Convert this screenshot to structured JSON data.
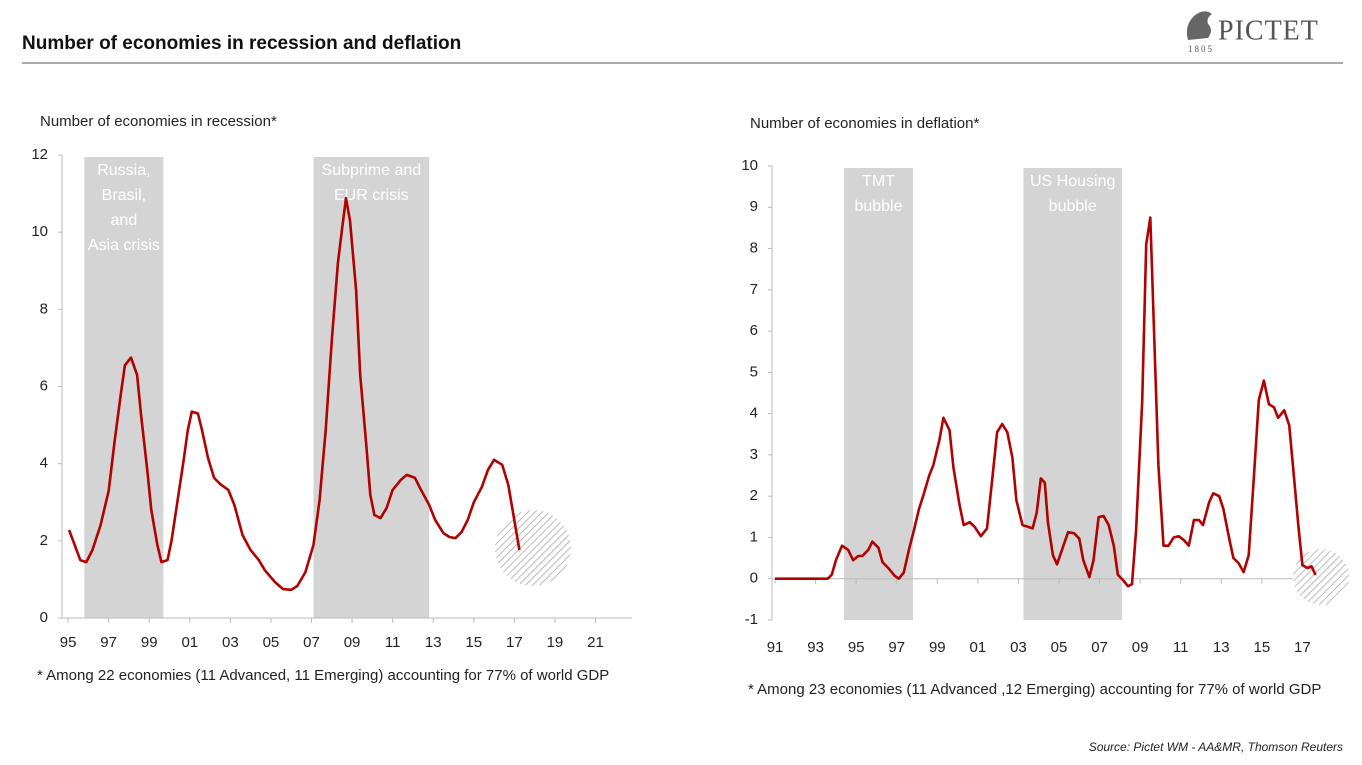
{
  "header": {
    "title": "Number of economies in recession and deflation",
    "logo": "PICTET",
    "logo_year": "1805"
  },
  "source": "Source: Pictet WM - AA&MR, Thomson Reuters",
  "chart_data": [
    {
      "type": "line",
      "ylabel": "Number of economies in recession*",
      "footnote": "* Among 22 economies (11 Advanced, 11 Emerging) accounting for 77% of world GDP",
      "color": "#b30000",
      "x": [
        1995.05,
        1995.6,
        1995.9,
        1996.2,
        1996.6,
        1997.0,
        1997.3,
        1997.6,
        1997.8,
        1998.1,
        1998.4,
        1998.6,
        1998.9,
        1999.1,
        1999.4,
        1999.6,
        1999.9,
        2000.1,
        2000.4,
        2000.7,
        2000.9,
        2001.1,
        2001.4,
        2001.6,
        2001.9,
        2002.2,
        2002.5,
        2002.9,
        2003.2,
        2003.6,
        2004.0,
        2004.4,
        2004.7,
        2005.2,
        2005.6,
        2006.0,
        2006.3,
        2006.7,
        2007.1,
        2007.4,
        2007.7,
        2008.0,
        2008.3,
        2008.5,
        2008.7,
        2008.9,
        2009.2,
        2009.4,
        2009.7,
        2009.9,
        2010.1,
        2010.4,
        2010.7,
        2011.0,
        2011.4,
        2011.7,
        2012.1,
        2012.4,
        2012.8,
        2013.1,
        2013.5,
        2013.8,
        2014.1,
        2014.4,
        2014.7,
        2015.0,
        2015.4,
        2015.7,
        2016.0,
        2016.4,
        2016.7,
        2017.0,
        2017.25
      ],
      "values": [
        2.28,
        1.5,
        1.45,
        1.76,
        2.4,
        3.3,
        4.6,
        5.8,
        6.55,
        6.75,
        6.3,
        5.25,
        3.85,
        2.8,
        1.9,
        1.45,
        1.5,
        2.0,
        3.05,
        4.1,
        4.87,
        5.35,
        5.3,
        4.87,
        4.15,
        3.63,
        3.47,
        3.32,
        2.93,
        2.15,
        1.76,
        1.5,
        1.24,
        0.93,
        0.75,
        0.73,
        0.83,
        1.19,
        1.9,
        3.06,
        4.87,
        7.2,
        9.2,
        10.05,
        10.88,
        10.3,
        8.5,
        6.3,
        4.48,
        3.19,
        2.67,
        2.59,
        2.85,
        3.32,
        3.58,
        3.71,
        3.63,
        3.32,
        2.93,
        2.54,
        2.2,
        2.1,
        2.07,
        2.23,
        2.54,
        3.0,
        3.4,
        3.84,
        4.1,
        3.97,
        3.45,
        2.54,
        1.76
      ],
      "xlim": [
        1994.7,
        2022.8
      ],
      "xticks": [
        {
          "value": 1995,
          "label": "95"
        },
        {
          "value": 1997,
          "label": "97"
        },
        {
          "value": 1999,
          "label": "99"
        },
        {
          "value": 2001,
          "label": "01"
        },
        {
          "value": 2003,
          "label": "03"
        },
        {
          "value": 2005,
          "label": "05"
        },
        {
          "value": 2007,
          "label": "07"
        },
        {
          "value": 2009,
          "label": "09"
        },
        {
          "value": 2011,
          "label": "11"
        },
        {
          "value": 2013,
          "label": "13"
        },
        {
          "value": 2015,
          "label": "15"
        },
        {
          "value": 2017,
          "label": "17"
        },
        {
          "value": 2019,
          "label": "19"
        },
        {
          "value": 2021,
          "label": "21"
        }
      ],
      "ylim": [
        0,
        12
      ],
      "yticks": [
        0,
        2,
        4,
        6,
        8,
        10,
        12
      ],
      "shaded_periods": [
        {
          "label": [
            "Russia,",
            "Brasil,",
            "and",
            "Asia crisis"
          ],
          "start": 1995.8,
          "end": 1999.7
        },
        {
          "label": [
            "Subprime and",
            "EUR crisis"
          ],
          "start": 2007.1,
          "end": 2012.8
        }
      ]
    },
    {
      "type": "line",
      "ylabel": "Number of economies in deflation*",
      "footnote": "* Among 23 economies (11 Advanced ,12 Emerging) accounting for 77% of world GDP",
      "color": "#b30000",
      "x": [
        1991,
        1993.6,
        1993.8,
        1994.0,
        1994.3,
        1994.6,
        1994.85,
        1995.1,
        1995.3,
        1995.6,
        1995.8,
        1996.1,
        1996.3,
        1996.6,
        1996.9,
        1997.1,
        1997.35,
        1997.6,
        1997.85,
        1998.1,
        1998.3,
        1998.6,
        1998.8,
        1999.1,
        1999.3,
        1999.6,
        1999.8,
        2000.1,
        2000.3,
        2000.6,
        2000.85,
        2001.15,
        2001.45,
        2001.7,
        2001.95,
        2002.2,
        2002.45,
        2002.7,
        2002.9,
        2003.2,
        2003.4,
        2003.7,
        2003.9,
        2004.1,
        2004.3,
        2004.45,
        2004.7,
        2004.9,
        2005.15,
        2005.45,
        2005.75,
        2006.0,
        2006.2,
        2006.5,
        2006.7,
        2006.95,
        2007.2,
        2007.45,
        2007.7,
        2007.9,
        2008.15,
        2008.4,
        2008.6,
        2008.8,
        2009.1,
        2009.3,
        2009.5,
        2009.7,
        2009.9,
        2010.15,
        2010.4,
        2010.65,
        2010.9,
        2011.15,
        2011.4,
        2011.65,
        2011.9,
        2012.1,
        2012.4,
        2012.6,
        2012.9,
        2013.1,
        2013.4,
        2013.6,
        2013.85,
        2014.1,
        2014.35,
        2014.6,
        2014.85,
        2015.1,
        2015.35,
        2015.6,
        2015.8,
        2016.1,
        2016.35,
        2016.6,
        2016.8,
        2017.0,
        2017.25,
        2017.45,
        2017.65
      ],
      "values": [
        0,
        0,
        0.1,
        0.45,
        0.8,
        0.7,
        0.45,
        0.55,
        0.55,
        0.7,
        0.9,
        0.75,
        0.4,
        0.25,
        0.07,
        0,
        0.15,
        0.7,
        1.18,
        1.7,
        2.0,
        2.5,
        2.75,
        3.35,
        3.9,
        3.6,
        2.68,
        1.78,
        1.3,
        1.37,
        1.25,
        1.03,
        1.22,
        2.38,
        3.55,
        3.75,
        3.55,
        2.93,
        1.9,
        1.3,
        1.27,
        1.22,
        1.6,
        2.43,
        2.33,
        1.37,
        0.57,
        0.35,
        0.7,
        1.13,
        1.1,
        0.97,
        0.45,
        0.04,
        0.45,
        1.49,
        1.52,
        1.3,
        0.8,
        0.1,
        -0.03,
        -0.18,
        -0.13,
        1.18,
        4.3,
        8.1,
        8.75,
        5.8,
        2.75,
        0.8,
        0.8,
        1.0,
        1.03,
        0.94,
        0.8,
        1.42,
        1.42,
        1.3,
        1.85,
        2.07,
        2.0,
        1.7,
        0.95,
        0.5,
        0.38,
        0.16,
        0.57,
        2.4,
        4.33,
        4.8,
        4.23,
        4.15,
        3.9,
        4.08,
        3.72,
        2.38,
        1.3,
        0.33,
        0.26,
        0.3,
        0.09
      ],
      "xlim": [
        1990.85,
        2019.1
      ],
      "xticks": [
        {
          "value": 1991,
          "label": "91"
        },
        {
          "value": 1993,
          "label": "93"
        },
        {
          "value": 1995,
          "label": "95"
        },
        {
          "value": 1997,
          "label": "97"
        },
        {
          "value": 1999,
          "label": "99"
        },
        {
          "value": 2001,
          "label": "01"
        },
        {
          "value": 2003,
          "label": "03"
        },
        {
          "value": 2005,
          "label": "05"
        },
        {
          "value": 2007,
          "label": "07"
        },
        {
          "value": 2009,
          "label": "09"
        },
        {
          "value": 2011,
          "label": "11"
        },
        {
          "value": 2013,
          "label": "13"
        },
        {
          "value": 2015,
          "label": "15"
        },
        {
          "value": 2017,
          "label": "17"
        }
      ],
      "ylim": [
        -1,
        10
      ],
      "yticks": [
        -1,
        0,
        1,
        2,
        3,
        4,
        5,
        6,
        7,
        8,
        9,
        10
      ],
      "shaded_periods": [
        {
          "label": [
            "TMT",
            "bubble"
          ],
          "start": 1994.4,
          "end": 1997.8
        },
        {
          "label": [
            "US Housing",
            "bubble"
          ],
          "start": 2003.25,
          "end": 2008.1
        }
      ]
    }
  ]
}
